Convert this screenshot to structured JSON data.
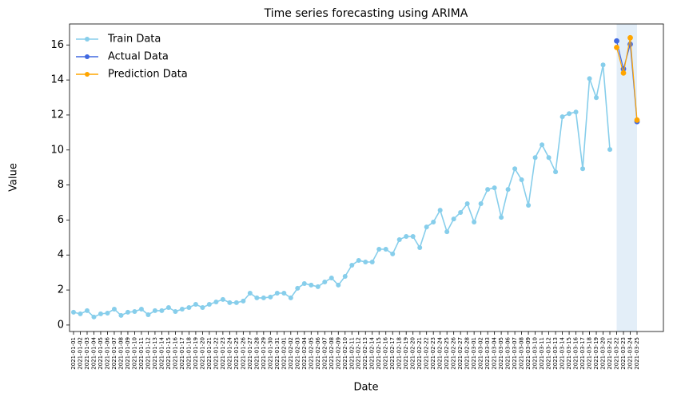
{
  "chart_data": {
    "type": "line",
    "title": "Time series forecasting using ARIMA",
    "x_label": "Date",
    "y_label": "Value",
    "categories": [
      "2021-01-01",
      "2021-01-02",
      "2021-01-03",
      "2021-01-04",
      "2021-01-05",
      "2021-01-06",
      "2021-01-07",
      "2021-01-08",
      "2021-01-09",
      "2021-01-10",
      "2021-01-11",
      "2021-01-12",
      "2021-01-13",
      "2021-01-14",
      "2021-01-15",
      "2021-01-16",
      "2021-01-17",
      "2021-01-18",
      "2021-01-19",
      "2021-01-20",
      "2021-01-21",
      "2021-01-22",
      "2021-01-23",
      "2021-01-24",
      "2021-01-25",
      "2021-01-26",
      "2021-01-27",
      "2021-01-28",
      "2021-01-29",
      "2021-01-30",
      "2021-01-31",
      "2021-02-01",
      "2021-02-02",
      "2021-02-03",
      "2021-02-04",
      "2021-02-05",
      "2021-02-06",
      "2021-02-07",
      "2021-02-08",
      "2021-02-09",
      "2021-02-10",
      "2021-02-11",
      "2021-02-12",
      "2021-02-13",
      "2021-02-14",
      "2021-02-15",
      "2021-02-16",
      "2021-02-17",
      "2021-02-18",
      "2021-02-19",
      "2021-02-20",
      "2021-02-21",
      "2021-02-22",
      "2021-02-23",
      "2021-02-24",
      "2021-02-25",
      "2021-02-26",
      "2021-02-27",
      "2021-02-28",
      "2021-03-01",
      "2021-03-02",
      "2021-03-03",
      "2021-03-04",
      "2021-03-05",
      "2021-03-06",
      "2021-03-07",
      "2021-03-08",
      "2021-03-09",
      "2021-03-10",
      "2021-03-11",
      "2021-03-12",
      "2021-03-13",
      "2021-03-14",
      "2021-03-15",
      "2021-03-16",
      "2021-03-17",
      "2021-03-18",
      "2021-03-19",
      "2021-03-20",
      "2021-03-21",
      "2021-03-22",
      "2021-03-23",
      "2021-03-24",
      "2021-03-25"
    ],
    "series": [
      {
        "name": "Train Data",
        "color": "#87ceeb",
        "values": [
          0.73,
          0.64,
          0.82,
          0.46,
          0.64,
          0.68,
          0.91,
          0.55,
          0.73,
          0.77,
          0.91,
          0.59,
          0.82,
          0.82,
          1.0,
          0.77,
          0.91,
          1.0,
          1.18,
          1.0,
          1.18,
          1.32,
          1.46,
          1.28,
          1.28,
          1.37,
          1.82,
          1.55,
          1.55,
          1.6,
          1.82,
          1.82,
          1.55,
          2.1,
          2.37,
          2.28,
          2.19,
          2.46,
          2.69,
          2.28,
          2.78,
          3.42,
          3.69,
          3.6,
          3.6,
          4.33,
          4.33,
          4.06,
          4.88,
          5.06,
          5.06,
          4.42,
          5.6,
          5.88,
          6.56,
          5.33,
          6.06,
          6.43,
          6.93,
          5.88,
          6.93,
          7.75,
          7.84,
          6.15,
          7.75,
          8.93,
          8.3,
          6.84,
          9.57,
          10.3,
          9.57,
          8.75,
          11.9,
          12.08,
          12.17,
          8.93,
          14.08,
          12.99,
          14.86,
          10.03,
          null,
          null,
          null,
          null
        ]
      },
      {
        "name": "Actual Data",
        "color": "#4169e1",
        "values": [
          null,
          null,
          null,
          null,
          null,
          null,
          null,
          null,
          null,
          null,
          null,
          null,
          null,
          null,
          null,
          null,
          null,
          null,
          null,
          null,
          null,
          null,
          null,
          null,
          null,
          null,
          null,
          null,
          null,
          null,
          null,
          null,
          null,
          null,
          null,
          null,
          null,
          null,
          null,
          null,
          null,
          null,
          null,
          null,
          null,
          null,
          null,
          null,
          null,
          null,
          null,
          null,
          null,
          null,
          null,
          null,
          null,
          null,
          null,
          null,
          null,
          null,
          null,
          null,
          null,
          null,
          null,
          null,
          null,
          null,
          null,
          null,
          null,
          null,
          null,
          null,
          null,
          null,
          null,
          null,
          16.23,
          14.63,
          16.04,
          11.62
        ]
      },
      {
        "name": "Prediction Data",
        "color": "#ffa500",
        "values": [
          null,
          null,
          null,
          null,
          null,
          null,
          null,
          null,
          null,
          null,
          null,
          null,
          null,
          null,
          null,
          null,
          null,
          null,
          null,
          null,
          null,
          null,
          null,
          null,
          null,
          null,
          null,
          null,
          null,
          null,
          null,
          null,
          null,
          null,
          null,
          null,
          null,
          null,
          null,
          null,
          null,
          null,
          null,
          null,
          null,
          null,
          null,
          null,
          null,
          null,
          null,
          null,
          null,
          null,
          null,
          null,
          null,
          null,
          null,
          null,
          null,
          null,
          null,
          null,
          null,
          null,
          null,
          null,
          null,
          null,
          null,
          null,
          null,
          null,
          null,
          null,
          null,
          null,
          null,
          null,
          15.86,
          14.4,
          16.41,
          11.71
        ]
      }
    ],
    "shaded_span": [
      "2021-03-22",
      "2021-03-25"
    ],
    "shade_color": "#e3eef8",
    "ylim": [
      -0.37,
      17.2
    ],
    "yticks": [
      0,
      2,
      4,
      6,
      8,
      10,
      12,
      14,
      16
    ],
    "legend": "upper left"
  }
}
